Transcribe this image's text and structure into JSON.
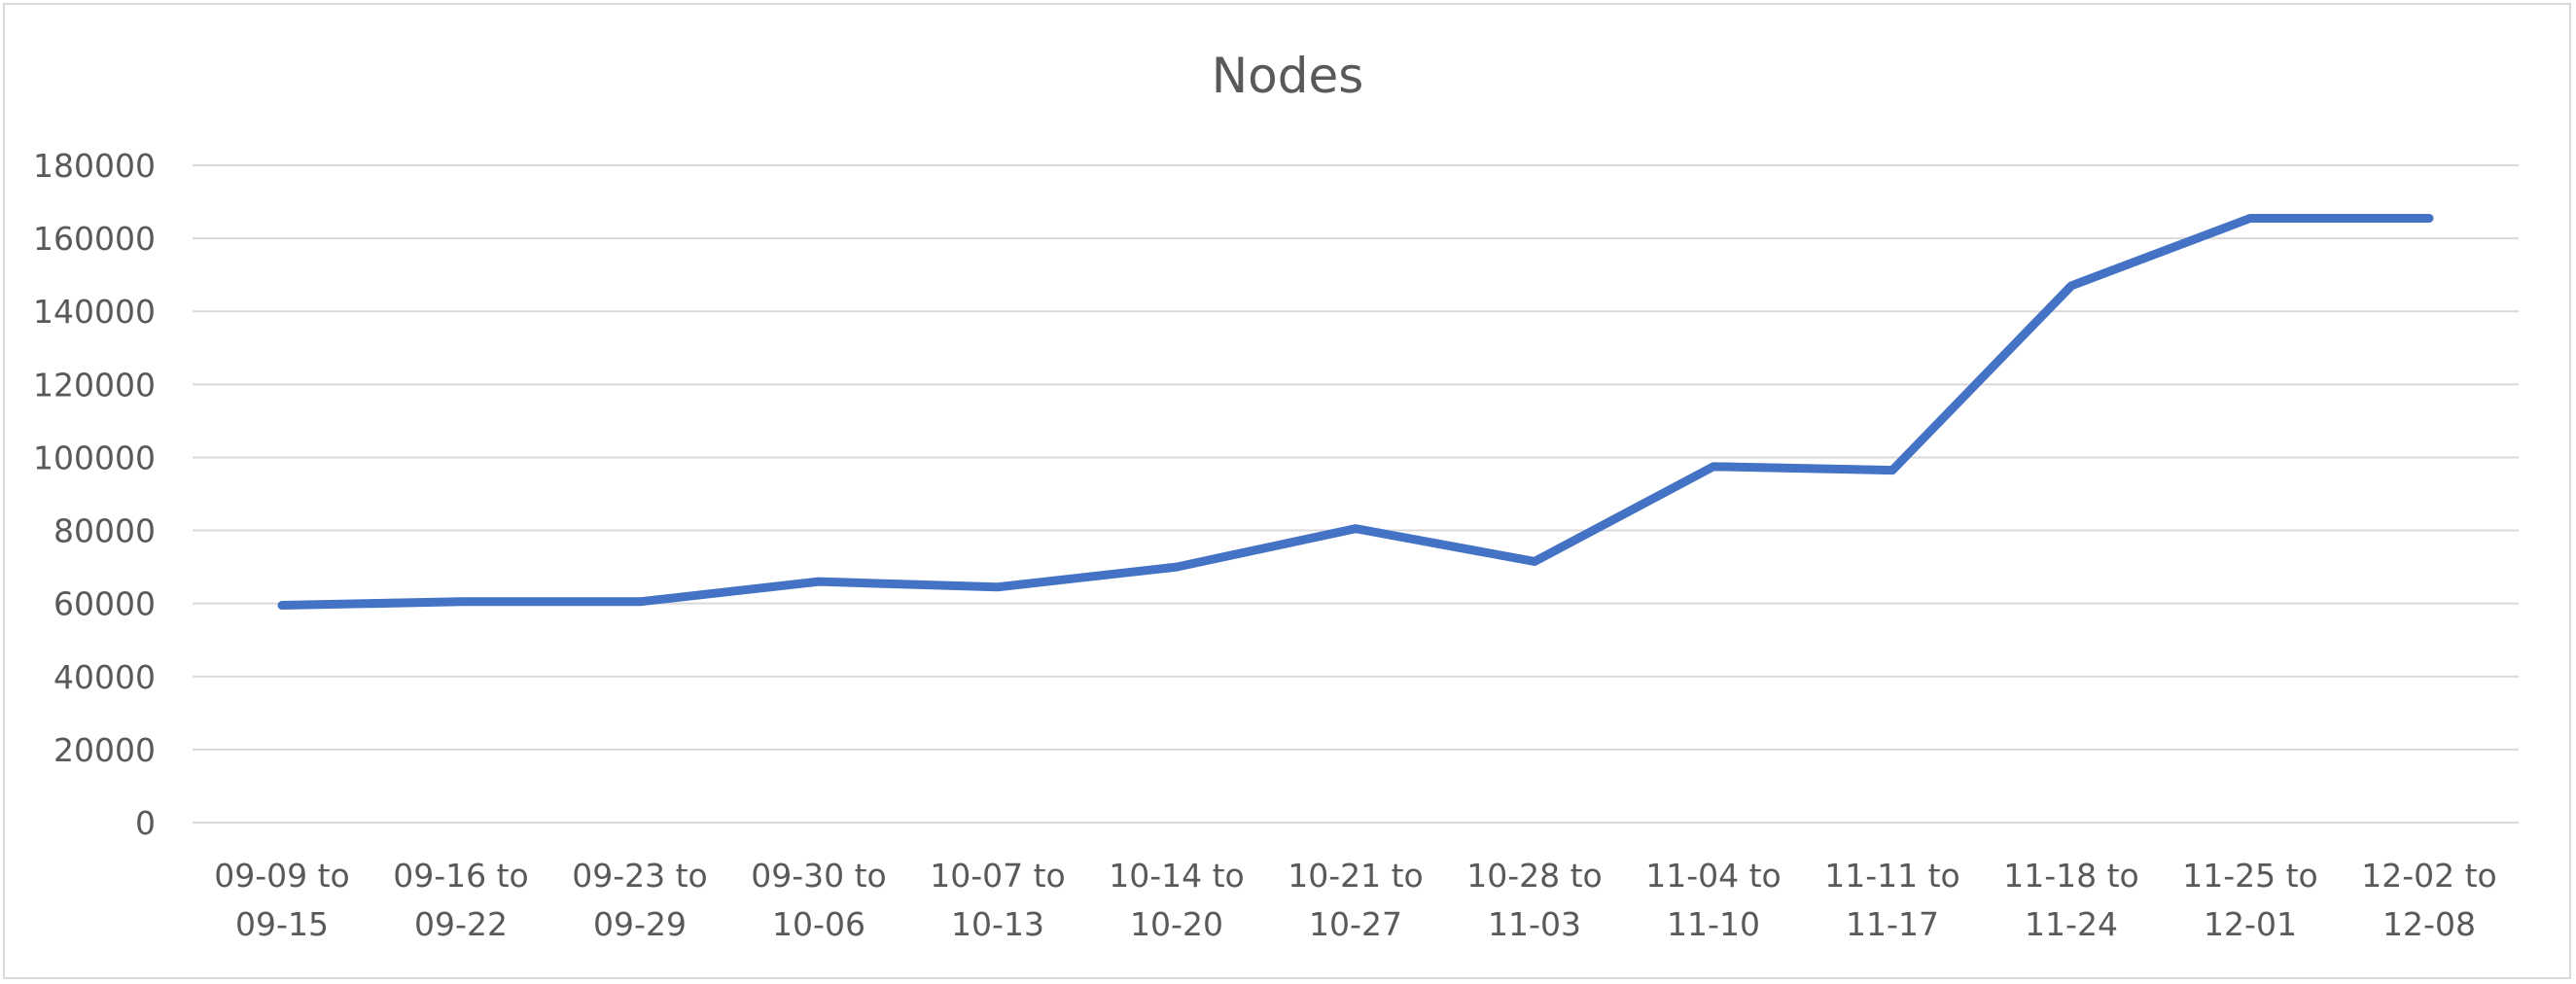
{
  "chart_data": {
    "type": "line",
    "title": "Nodes",
    "xlabel": "",
    "ylabel": "",
    "categories": [
      [
        "09-09 to",
        "09-15"
      ],
      [
        "09-16 to",
        "09-22"
      ],
      [
        "09-23 to",
        "09-29"
      ],
      [
        "09-30 to",
        "10-06"
      ],
      [
        "10-07 to",
        "10-13"
      ],
      [
        "10-14 to",
        "10-20"
      ],
      [
        "10-21 to",
        "10-27"
      ],
      [
        "10-28 to",
        "11-03"
      ],
      [
        "11-04 to",
        "11-10"
      ],
      [
        "11-11 to",
        "11-17"
      ],
      [
        "11-18 to",
        "11-24"
      ],
      [
        "11-25 to",
        "12-01"
      ],
      [
        "12-02 to",
        "12-08"
      ]
    ],
    "series": [
      {
        "values": [
          59500,
          60500,
          60500,
          66000,
          64500,
          70000,
          80500,
          71500,
          97500,
          96500,
          147000,
          165500,
          165500
        ],
        "color": "#4472c4"
      }
    ],
    "ylim": [
      0,
      180000
    ],
    "yticks": [
      "0",
      "20000",
      "40000",
      "60000",
      "80000",
      "100000",
      "120000",
      "140000",
      "160000",
      "180000"
    ],
    "grid": true,
    "legend": "none"
  }
}
